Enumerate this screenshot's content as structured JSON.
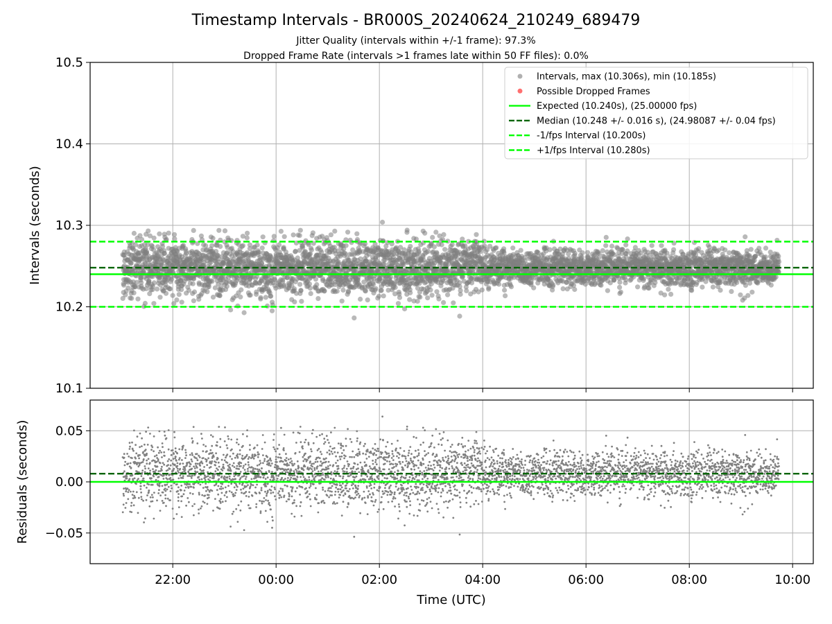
{
  "chart_data": [
    {
      "type": "scatter",
      "panel": "top",
      "title": "Timestamp Intervals - BR000S_20240624_210249_689479",
      "subtitle_lines": [
        "Jitter Quality (intervals within +/-1 frame): 97.3%",
        "Dropped Frame Rate (intervals >1 frames late within 50 FF files): 0.0%"
      ],
      "ylabel": "Intervals (seconds)",
      "ylim": [
        10.1,
        10.5
      ],
      "yticks": [
        10.1,
        10.2,
        10.3,
        10.4,
        10.5
      ],
      "ytick_labels": [
        "10.1",
        "10.2",
        "10.3",
        "10.4",
        "10.5"
      ],
      "grid": true,
      "legend_position": "top-right",
      "colors": {
        "points": "#808080",
        "dropped": "#ff0000",
        "expected": "#00ff00",
        "median": "#006400",
        "bounds": "#00ff00"
      },
      "legend": [
        {
          "label": "Intervals, max (10.306s), min (10.185s)",
          "marker": "circle",
          "color": "#b0b0b0"
        },
        {
          "label": "Possible Dropped Frames",
          "marker": "circle",
          "color": "#ff6f6f"
        },
        {
          "label": "Expected (10.240s), (25.00000 fps)",
          "marker": "solid",
          "color": "#00ff00"
        },
        {
          "label": "Median (10.248 +/- 0.016 s), (24.98087 +/- 0.04 fps)",
          "marker": "dashed",
          "color": "#006400"
        },
        {
          "label": "-1/fps Interval (10.200s)",
          "marker": "dashed",
          "color": "#00ff00"
        },
        {
          "label": "+1/fps Interval (10.280s)",
          "marker": "dashed",
          "color": "#00ff00"
        }
      ],
      "reference_lines": [
        {
          "name": "expected",
          "y": 10.24,
          "style": "solid"
        },
        {
          "name": "median",
          "y": 10.248,
          "style": "dashed"
        },
        {
          "name": "minus_one_fps",
          "y": 10.2,
          "style": "dashed"
        },
        {
          "name": "plus_one_fps",
          "y": 10.28,
          "style": "dashed"
        }
      ],
      "series": [
        {
          "name": "Intervals",
          "summary": {
            "t_start": "21:02",
            "t_end": "09:44",
            "max": 10.306,
            "min": 10.185,
            "median": 10.248,
            "std": 0.016
          }
        }
      ]
    },
    {
      "type": "scatter",
      "panel": "bottom",
      "xlabel": "Time (UTC)",
      "ylabel": "Residuals (seconds)",
      "ylim": [
        -0.08,
        0.08
      ],
      "yticks": [
        -0.05,
        0.0,
        0.05
      ],
      "ytick_labels": [
        "−0.05",
        "0.00",
        "0.05"
      ],
      "xlim": [
        "20:24",
        "10:24"
      ],
      "xticks": [
        "22:00",
        "00:00",
        "02:00",
        "04:00",
        "06:00",
        "08:00",
        "10:00"
      ],
      "grid": true,
      "reference_lines": [
        {
          "name": "zero",
          "y": 0.0,
          "style": "solid"
        },
        {
          "name": "median_residual",
          "y": 0.008,
          "style": "dashed"
        }
      ],
      "series": [
        {
          "name": "Residuals",
          "summary": {
            "max": 0.066,
            "min": -0.055
          }
        }
      ]
    }
  ]
}
